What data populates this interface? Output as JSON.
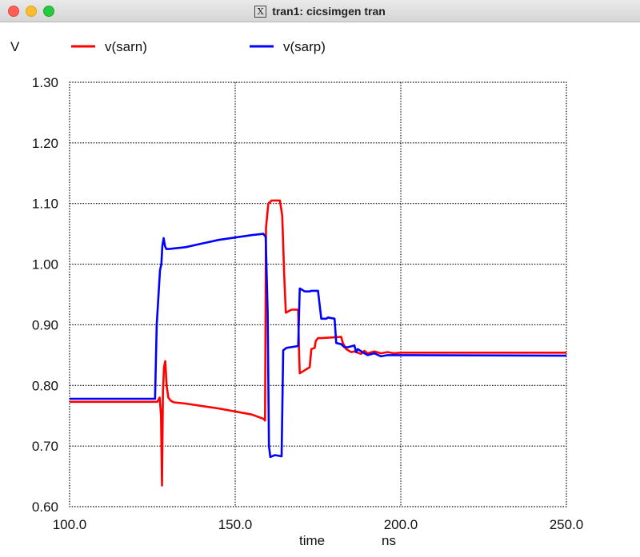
{
  "window": {
    "title": "tran1: cicsimgen tran",
    "x_glyph": "X"
  },
  "chart_data": {
    "type": "line",
    "y_unit": "V",
    "x_label": "time",
    "x_unit": "ns",
    "xlim": [
      100,
      250
    ],
    "ylim": [
      0.6,
      1.3
    ],
    "x_ticks": [
      100,
      150,
      200,
      250
    ],
    "x_tick_labels": [
      "100.0",
      "150.0",
      "200.0",
      "250.0"
    ],
    "y_ticks": [
      0.6,
      0.7,
      0.8,
      0.9,
      1.0,
      1.1,
      1.2,
      1.3
    ],
    "y_tick_labels": [
      "0.60",
      "0.70",
      "0.80",
      "0.90",
      "1.00",
      "1.10",
      "1.20",
      "1.30"
    ],
    "grid": true,
    "legend_position": "top",
    "series": [
      {
        "name": "v(sarn)",
        "color": "#ff0000",
        "x": [
          100,
          126.5,
          127.2,
          127.6,
          127.9,
          128.2,
          128.5,
          128.9,
          129.3,
          129.8,
          130.5,
          131.5,
          135,
          145,
          155,
          158.5,
          159.0,
          159.3,
          160.0,
          161.0,
          163.5,
          164.2,
          164.8,
          165.3,
          167,
          169.0,
          169.3,
          169.5,
          171,
          172.5,
          173.0,
          174.0,
          174.3,
          175.0,
          176,
          182,
          182.5,
          183.5,
          185,
          186,
          188,
          189,
          190,
          192,
          194,
          196,
          198,
          200,
          250
        ],
        "y": [
          0.773,
          0.773,
          0.78,
          0.75,
          0.635,
          0.79,
          0.83,
          0.84,
          0.8,
          0.78,
          0.775,
          0.772,
          0.77,
          0.762,
          0.752,
          0.745,
          0.742,
          1.06,
          1.1,
          1.105,
          1.105,
          1.08,
          0.98,
          0.92,
          0.925,
          0.925,
          0.85,
          0.82,
          0.825,
          0.83,
          0.86,
          0.862,
          0.873,
          0.878,
          0.878,
          0.88,
          0.87,
          0.86,
          0.855,
          0.856,
          0.852,
          0.857,
          0.853,
          0.856,
          0.853,
          0.855,
          0.853,
          0.854,
          0.854
        ]
      },
      {
        "name": "v(sarp)",
        "color": "#0000ff",
        "x": [
          100,
          125.8,
          126.3,
          127.3,
          127.7,
          128.0,
          128.4,
          128.8,
          129.2,
          130,
          135,
          145,
          155,
          158.5,
          159.2,
          159.8,
          160.2,
          160.6,
          162,
          164.0,
          164.5,
          165.5,
          169.0,
          169.5,
          171,
          172.5,
          173,
          175,
          176,
          177.5,
          178,
          180,
          180.5,
          182,
          183,
          184,
          186,
          186.5,
          187,
          189,
          190,
          192,
          194,
          196,
          198,
          200,
          250
        ],
        "y": [
          0.778,
          0.778,
          0.9,
          0.99,
          1.0,
          1.03,
          1.043,
          1.03,
          1.025,
          1.025,
          1.028,
          1.04,
          1.048,
          1.05,
          1.045,
          0.92,
          0.7,
          0.682,
          0.685,
          0.683,
          0.858,
          0.862,
          0.865,
          0.96,
          0.955,
          0.955,
          0.956,
          0.956,
          0.91,
          0.91,
          0.912,
          0.91,
          0.87,
          0.868,
          0.863,
          0.863,
          0.866,
          0.855,
          0.86,
          0.853,
          0.85,
          0.853,
          0.848,
          0.85,
          0.85,
          0.85,
          0.849
        ]
      }
    ]
  }
}
